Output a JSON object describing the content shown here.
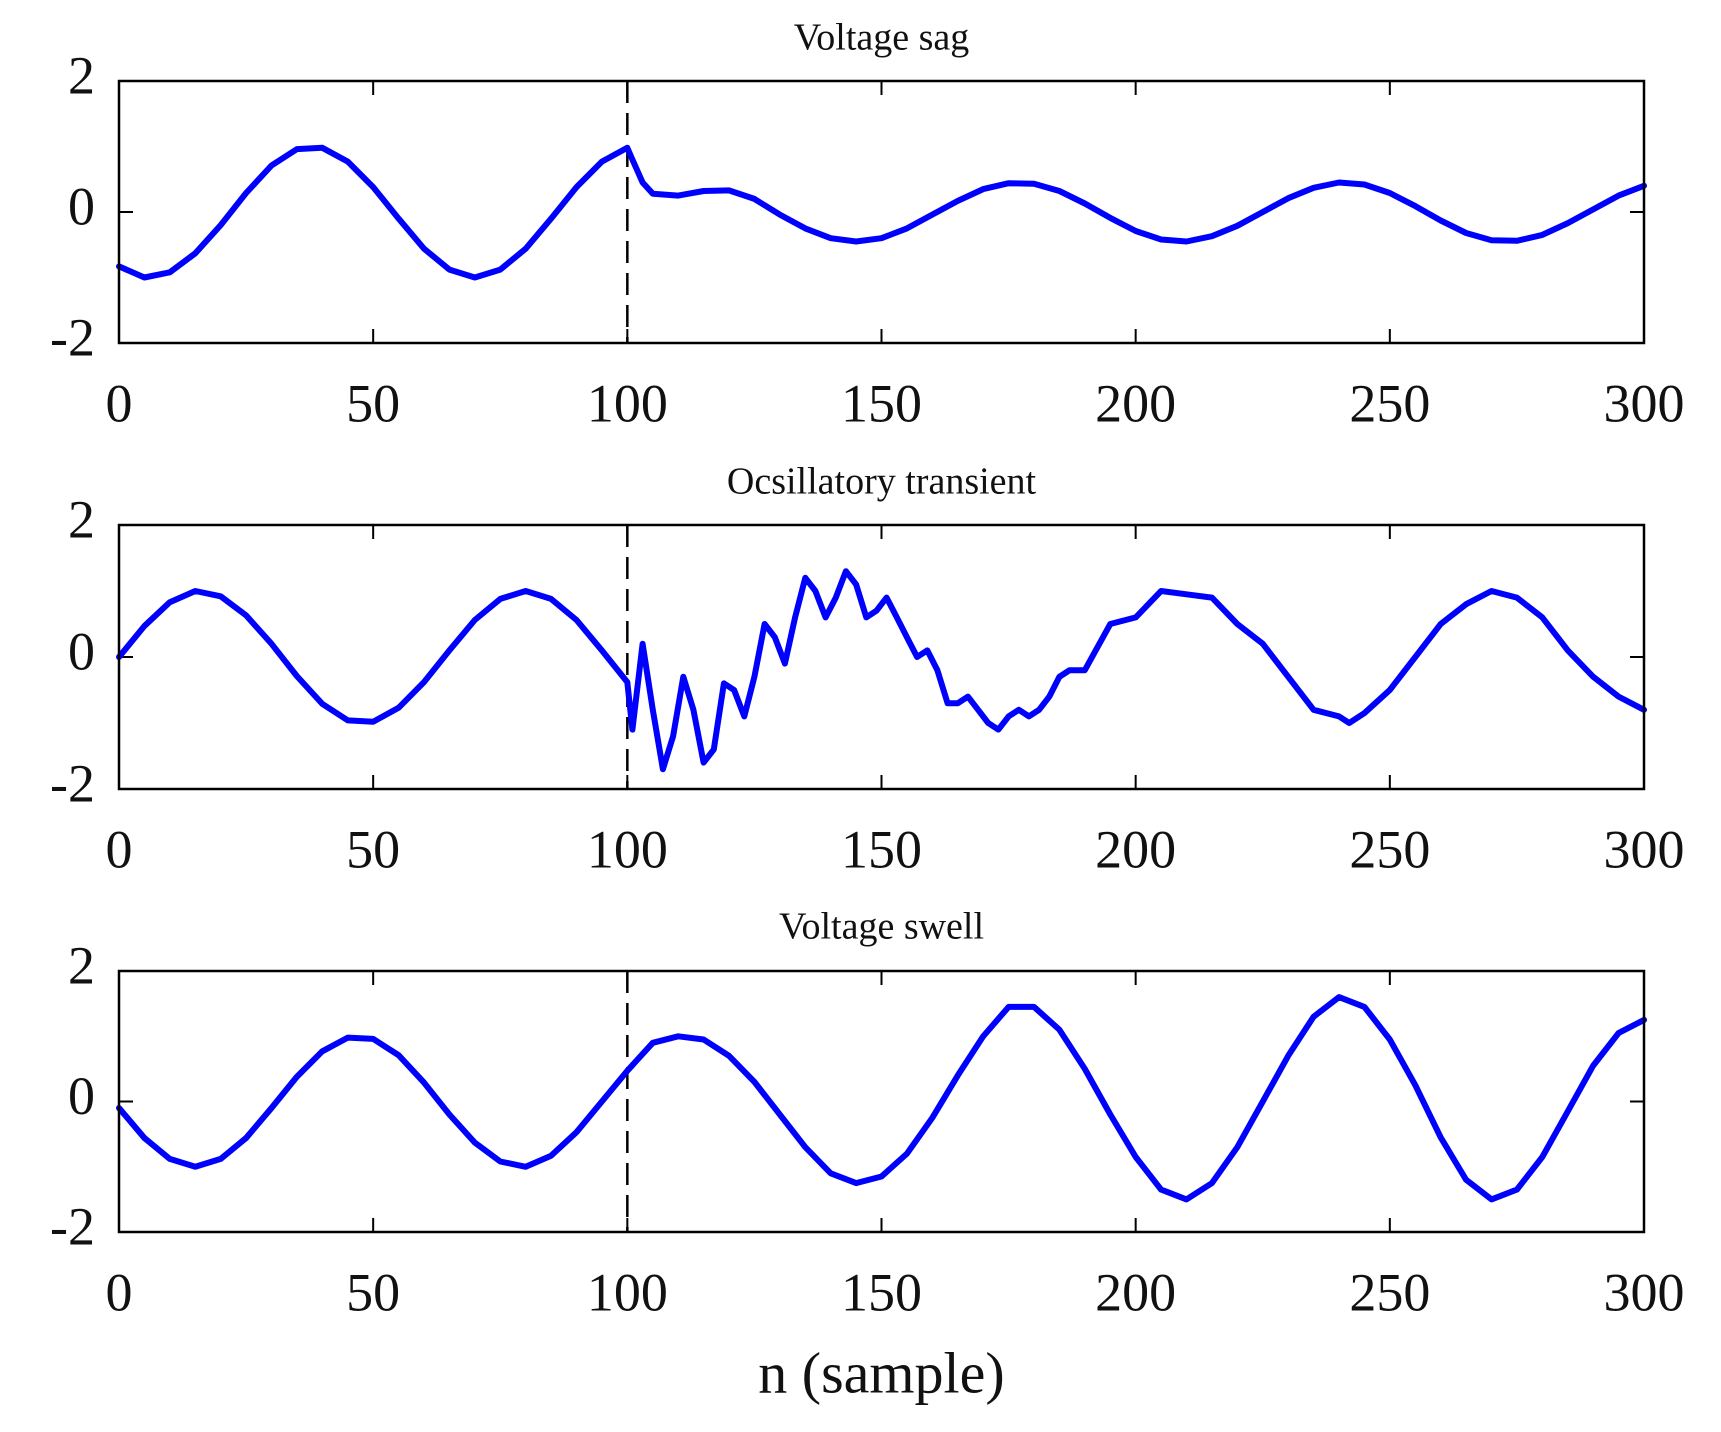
{
  "chart_data": [
    {
      "type": "line",
      "title": "Voltage sag",
      "color": "#0000ff",
      "x": [
        0,
        5,
        10,
        15,
        20,
        25,
        30,
        35,
        40,
        45,
        50,
        55,
        60,
        65,
        70,
        75,
        80,
        85,
        90,
        95,
        100,
        101,
        103,
        105,
        110,
        115,
        120,
        125,
        130,
        135,
        140,
        145,
        150,
        155,
        160,
        165,
        170,
        175,
        180,
        185,
        190,
        195,
        200,
        205,
        210,
        215,
        220,
        225,
        230,
        235,
        240,
        245,
        250,
        255,
        260,
        265,
        270,
        275,
        280,
        285,
        290,
        295,
        300
      ],
      "values": [
        -0.83,
        -1.0,
        -0.92,
        -0.63,
        -0.2,
        0.29,
        0.71,
        0.96,
        0.98,
        0.77,
        0.38,
        -0.1,
        -0.56,
        -0.88,
        -1.0,
        -0.88,
        -0.56,
        -0.1,
        0.38,
        0.77,
        0.98,
        0.8,
        0.45,
        0.28,
        0.25,
        0.32,
        0.33,
        0.2,
        -0.04,
        -0.25,
        -0.4,
        -0.45,
        -0.4,
        -0.25,
        -0.04,
        0.17,
        0.35,
        0.44,
        0.43,
        0.32,
        0.13,
        -0.09,
        -0.29,
        -0.42,
        -0.45,
        -0.37,
        -0.21,
        0,
        0.21,
        0.37,
        0.45,
        0.42,
        0.29,
        0.09,
        -0.13,
        -0.32,
        -0.43,
        -0.44,
        -0.35,
        -0.17,
        0.04,
        0.25,
        0.4
      ],
      "vline": 100,
      "xlim": [
        0,
        300
      ],
      "xticks": [
        0,
        50,
        100,
        150,
        200,
        250,
        300
      ],
      "ylim": [
        -2,
        2
      ],
      "yticks": [
        -2,
        0,
        2
      ]
    },
    {
      "type": "line",
      "title": "Ocsillatory transient",
      "color": "#0000ff",
      "x": [
        0,
        5,
        10,
        15,
        20,
        25,
        30,
        35,
        40,
        45,
        50,
        55,
        60,
        65,
        70,
        75,
        80,
        85,
        90,
        95,
        100,
        101,
        103,
        105,
        107,
        109,
        111,
        113,
        115,
        117,
        119,
        121,
        123,
        125,
        127,
        129,
        131,
        133,
        135,
        137,
        139,
        141,
        143,
        145,
        147,
        149,
        151,
        153,
        155,
        157,
        159,
        161,
        163,
        165,
        167,
        169,
        171,
        173,
        175,
        177,
        179,
        181,
        183,
        185,
        187,
        189,
        190,
        195,
        200,
        205,
        210,
        215,
        220,
        225,
        230,
        235,
        240,
        242,
        245,
        250,
        255,
        260,
        265,
        270,
        275,
        280,
        285,
        290,
        295,
        300
      ],
      "values": [
        0,
        0.47,
        0.83,
        1.0,
        0.92,
        0.63,
        0.2,
        -0.29,
        -0.71,
        -0.96,
        -0.98,
        -0.77,
        -0.38,
        0.1,
        0.56,
        0.88,
        1.0,
        0.88,
        0.56,
        0.1,
        -0.38,
        -1.1,
        0.2,
        -0.8,
        -1.7,
        -1.2,
        -0.3,
        -0.8,
        -1.6,
        -1.4,
        -0.4,
        -0.5,
        -0.9,
        -0.3,
        0.5,
        0.3,
        -0.1,
        0.6,
        1.2,
        1.0,
        0.6,
        0.9,
        1.3,
        1.1,
        0.6,
        0.7,
        0.9,
        0.6,
        0.3,
        0.0,
        0.1,
        -0.2,
        -0.7,
        -0.7,
        -0.6,
        -0.8,
        -1.0,
        -1.1,
        -0.9,
        -0.8,
        -0.9,
        -0.8,
        -0.6,
        -0.3,
        -0.2,
        -0.2,
        -0.2,
        0.5,
        0.6,
        1.0,
        0.95,
        0.9,
        0.5,
        0.2,
        -0.3,
        -0.8,
        -0.9,
        -1.0,
        -0.85,
        -0.5,
        0,
        0.5,
        0.8,
        1.0,
        0.9,
        0.6,
        0.1,
        -0.3,
        -0.6,
        -0.8
      ],
      "vline": 100,
      "xlim": [
        0,
        300
      ],
      "xticks": [
        0,
        50,
        100,
        150,
        200,
        250,
        300
      ],
      "ylim": [
        -2,
        2
      ],
      "yticks": [
        -2,
        0,
        2
      ]
    },
    {
      "type": "line",
      "title": "Voltage swell",
      "color": "#0000ff",
      "xlabel": "n (sample)",
      "x": [
        0,
        5,
        10,
        15,
        20,
        25,
        30,
        35,
        40,
        45,
        50,
        55,
        60,
        65,
        70,
        75,
        80,
        85,
        90,
        95,
        100,
        105,
        110,
        115,
        120,
        125,
        130,
        135,
        140,
        145,
        150,
        155,
        160,
        165,
        170,
        175,
        180,
        185,
        190,
        195,
        200,
        205,
        210,
        215,
        220,
        225,
        230,
        235,
        240,
        245,
        250,
        255,
        260,
        265,
        270,
        275,
        280,
        285,
        290,
        295,
        300
      ],
      "values": [
        -0.1,
        -0.56,
        -0.88,
        -1.0,
        -0.88,
        -0.56,
        -0.1,
        0.38,
        0.77,
        0.98,
        0.96,
        0.71,
        0.29,
        -0.2,
        -0.63,
        -0.92,
        -1.0,
        -0.83,
        -0.47,
        0,
        0.47,
        0.9,
        1.0,
        0.95,
        0.7,
        0.3,
        -0.2,
        -0.7,
        -1.1,
        -1.25,
        -1.15,
        -0.8,
        -0.25,
        0.4,
        1.0,
        1.45,
        1.45,
        1.1,
        0.5,
        -0.2,
        -0.85,
        -1.35,
        -1.5,
        -1.25,
        -0.7,
        0.0,
        0.7,
        1.3,
        1.6,
        1.45,
        0.95,
        0.25,
        -0.55,
        -1.2,
        -1.5,
        -1.35,
        -0.85,
        -0.15,
        0.55,
        1.05,
        1.25
      ],
      "vline": 100,
      "xlim": [
        0,
        300
      ],
      "xticks": [
        0,
        50,
        100,
        150,
        200,
        250,
        300
      ],
      "ylim": [
        -2,
        2
      ],
      "yticks": [
        -2,
        0,
        2
      ]
    }
  ]
}
